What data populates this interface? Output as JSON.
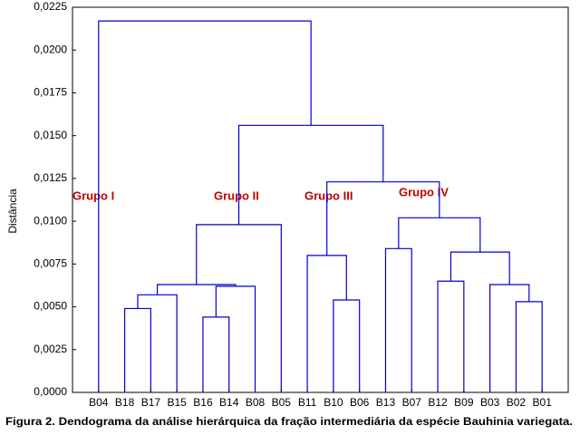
{
  "chart_data": {
    "type": "dendrogram",
    "y_label": "Distância",
    "caption": "Figura 2. Dendograma da análise hierárquica da fração intermediária da espécie Bauhinia variegata.",
    "leaves": [
      "B04",
      "B18",
      "B17",
      "B15",
      "B16",
      "B14",
      "B08",
      "B05",
      "B11",
      "B10",
      "B06",
      "B13",
      "B07",
      "B12",
      "B09",
      "B03",
      "B02",
      "B01"
    ],
    "merges": [
      {
        "children": [
          1,
          2
        ],
        "height": 0.0049
      },
      {
        "children": [
          18,
          3
        ],
        "height": 0.0057
      },
      {
        "children": [
          4,
          5
        ],
        "height": 0.0044
      },
      {
        "children": [
          20,
          6
        ],
        "height": 0.0062
      },
      {
        "children": [
          19,
          21
        ],
        "height": 0.0063
      },
      {
        "children": [
          22,
          7
        ],
        "height": 0.0098
      },
      {
        "children": [
          9,
          10
        ],
        "height": 0.0054
      },
      {
        "children": [
          8,
          24
        ],
        "height": 0.008
      },
      {
        "children": [
          16,
          17
        ],
        "height": 0.0053
      },
      {
        "children": [
          15,
          26
        ],
        "height": 0.0063
      },
      {
        "children": [
          13,
          14
        ],
        "height": 0.0065
      },
      {
        "children": [
          28,
          27
        ],
        "height": 0.0082
      },
      {
        "children": [
          11,
          12
        ],
        "height": 0.0084
      },
      {
        "children": [
          30,
          29
        ],
        "height": 0.0102
      },
      {
        "children": [
          25,
          31
        ],
        "height": 0.0123
      },
      {
        "children": [
          23,
          32
        ],
        "height": 0.0156
      },
      {
        "children": [
          0,
          33
        ],
        "height": 0.0217
      }
    ],
    "color": "#0000cc",
    "ylim": [
      0,
      0.0225
    ],
    "yticks": [
      {
        "value": 0,
        "label": "0,0000"
      },
      {
        "value": 0.0025,
        "label": "0,0025"
      },
      {
        "value": 0.005,
        "label": "0,0050"
      },
      {
        "value": 0.0075,
        "label": "0,0075"
      },
      {
        "value": 0.01,
        "label": "0,0100"
      },
      {
        "value": 0.0125,
        "label": "0,0125"
      },
      {
        "value": 0.015,
        "label": "0,0150"
      },
      {
        "value": 0.0175,
        "label": "0,0175"
      },
      {
        "value": 0.02,
        "label": "0,0200"
      },
      {
        "value": 0.0225,
        "label": "0,0225"
      }
    ],
    "annotations": [
      "Grupo I",
      "Grupo II",
      "Grupo III",
      "Grupo IV"
    ]
  }
}
